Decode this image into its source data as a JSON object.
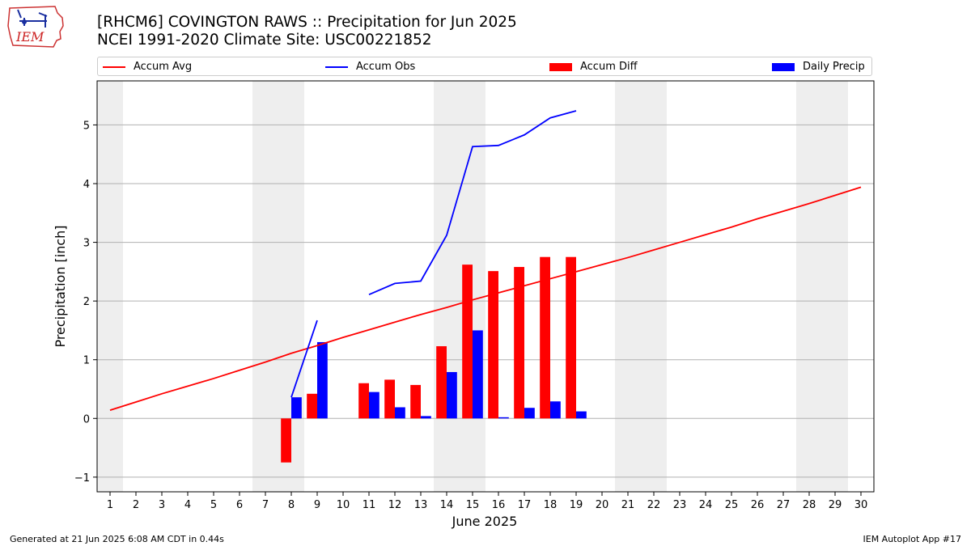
{
  "header": {
    "title_line1": "[RHCM6] COVINGTON RAWS :: Precipitation for Jun 2025",
    "title_line2": "NCEI 1991-2020 Climate Site: USC00221852",
    "logo_text": "IEM"
  },
  "legend": {
    "accum_avg": "Accum Avg",
    "accum_obs": "Accum Obs",
    "accum_diff": "Accum Diff",
    "daily_precip": "Daily Precip"
  },
  "footer": {
    "left": "Generated at 21 Jun 2025 6:08 AM CDT in 0.44s",
    "right": "IEM Autoplot App #17"
  },
  "chart_data": {
    "type": "bar",
    "xlabel": "June 2025",
    "ylabel": "Precipitation [inch]",
    "xlim": [
      0.5,
      30.5
    ],
    "ylim": [
      -1.25,
      5.75
    ],
    "x_ticks": [
      1,
      2,
      3,
      4,
      5,
      6,
      7,
      8,
      9,
      10,
      11,
      12,
      13,
      14,
      15,
      16,
      17,
      18,
      19,
      20,
      21,
      22,
      23,
      24,
      25,
      26,
      27,
      28,
      29,
      30
    ],
    "y_ticks": [
      -1,
      0,
      1,
      2,
      3,
      4,
      5
    ],
    "grid": "horizontal",
    "legend_position": "top",
    "weekend_shading": [
      [
        0.5,
        1.5
      ],
      [
        6.5,
        8.5
      ],
      [
        13.5,
        15.5
      ],
      [
        20.5,
        22.5
      ],
      [
        27.5,
        29.5
      ]
    ],
    "colors": {
      "accum_avg": "#ff0000",
      "accum_obs": "#0000ff",
      "accum_diff": "#ff0000",
      "daily_precip": "#0000ff",
      "shading": "#eeeeee",
      "grid": "#b0b0b0"
    },
    "series": [
      {
        "name": "Accum Avg",
        "kind": "line",
        "x": [
          1,
          2,
          3,
          4,
          5,
          6,
          7,
          8,
          9,
          10,
          11,
          12,
          13,
          14,
          15,
          16,
          17,
          18,
          19,
          20,
          21,
          22,
          23,
          24,
          25,
          26,
          27,
          28,
          29,
          30
        ],
        "values": [
          0.14,
          0.28,
          0.42,
          0.55,
          0.68,
          0.82,
          0.96,
          1.11,
          1.24,
          1.38,
          1.51,
          1.64,
          1.77,
          1.89,
          2.02,
          2.14,
          2.26,
          2.38,
          2.5,
          2.62,
          2.74,
          2.87,
          3.0,
          3.13,
          3.26,
          3.4,
          3.53,
          3.66,
          3.8,
          3.94
        ]
      },
      {
        "name": "Accum Obs",
        "kind": "line",
        "segments": [
          {
            "x": [
              8,
              9
            ],
            "values": [
              0.36,
              1.67
            ]
          },
          {
            "x": [
              11,
              12,
              13,
              14,
              15,
              16,
              17,
              18,
              19
            ],
            "values": [
              2.11,
              2.3,
              2.34,
              3.12,
              4.63,
              4.65,
              4.83,
              5.12,
              5.24
            ]
          }
        ]
      },
      {
        "name": "Accum Diff",
        "kind": "bar",
        "x": [
          8,
          9,
          11,
          12,
          13,
          14,
          15,
          16,
          17,
          18,
          19
        ],
        "values": [
          -0.75,
          0.42,
          0.6,
          0.66,
          0.57,
          1.23,
          2.62,
          2.51,
          2.58,
          2.75,
          2.75
        ]
      },
      {
        "name": "Daily Precip",
        "kind": "bar",
        "x": [
          8,
          9,
          11,
          12,
          13,
          14,
          15,
          16,
          17,
          18,
          19
        ],
        "values": [
          0.36,
          1.3,
          0.45,
          0.19,
          0.04,
          0.79,
          1.5,
          0.02,
          0.18,
          0.29,
          0.12
        ]
      }
    ]
  }
}
